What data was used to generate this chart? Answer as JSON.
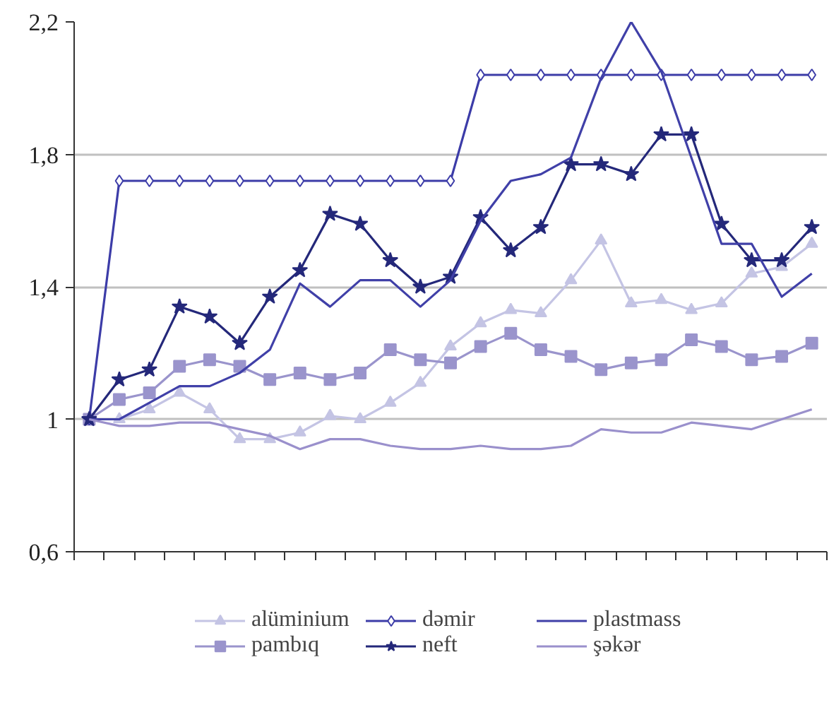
{
  "chart_data": {
    "type": "line",
    "categories": [
      null,
      null,
      null,
      null,
      null,
      null,
      null,
      null,
      null,
      null,
      null,
      null,
      null,
      null,
      null,
      null,
      null,
      null,
      null,
      null,
      null,
      null,
      null,
      null,
      null
    ],
    "ylim": [
      0.6,
      2.2
    ],
    "yticks": [
      {
        "value": 0.6,
        "label": "0,6"
      },
      1,
      {
        "value": 1.4,
        "label": "1,4"
      },
      {
        "value": 1.8,
        "label": "1,8"
      },
      {
        "value": 2.2,
        "label": "2,2"
      }
    ],
    "grid": "y",
    "legend": "bottom",
    "tick_labels": "y",
    "series": [
      {
        "name": "alüminium",
        "color": "#c4c4e4",
        "marker": "triangle",
        "values": [
          1.0,
          1.0,
          1.03,
          1.08,
          1.03,
          0.94,
          0.94,
          0.96,
          1.01,
          1.0,
          1.05,
          1.11,
          1.22,
          1.29,
          1.33,
          1.32,
          1.42,
          1.54,
          1.35,
          1.36,
          1.33,
          1.35,
          1.44,
          1.46,
          1.53
        ]
      },
      {
        "name": "pambıq",
        "color": "#9a94cc",
        "marker": "square",
        "values": [
          1.0,
          1.06,
          1.08,
          1.16,
          1.18,
          1.16,
          1.12,
          1.14,
          1.12,
          1.14,
          1.21,
          1.18,
          1.17,
          1.22,
          1.26,
          1.21,
          1.19,
          1.15,
          1.17,
          1.18,
          1.24,
          1.22,
          1.18,
          1.19,
          1.23
        ]
      },
      {
        "name": "dəmir",
        "color": "#3c3ca8",
        "marker": "diamond",
        "values": [
          1.0,
          1.72,
          1.72,
          1.72,
          1.72,
          1.72,
          1.72,
          1.72,
          1.72,
          1.72,
          1.72,
          1.72,
          1.72,
          2.04,
          2.04,
          2.04,
          2.04,
          2.04,
          2.04,
          2.04,
          2.04,
          2.04,
          2.04,
          2.04,
          2.04
        ]
      },
      {
        "name": "neft",
        "color": "#24287a",
        "marker": "star",
        "values": [
          1.0,
          1.12,
          1.15,
          1.34,
          1.31,
          1.23,
          1.37,
          1.45,
          1.62,
          1.59,
          1.48,
          1.4,
          1.43,
          1.61,
          1.51,
          1.58,
          1.77,
          1.77,
          1.74,
          1.86,
          1.86,
          1.59,
          1.48,
          1.48,
          1.58
        ]
      },
      {
        "name": "plastmass",
        "color": "#4040a8",
        "marker": "none",
        "values": [
          1.0,
          1.0,
          1.05,
          1.1,
          1.1,
          1.14,
          1.21,
          1.41,
          1.34,
          1.42,
          1.42,
          1.34,
          1.42,
          1.6,
          1.72,
          1.74,
          1.79,
          2.03,
          2.2,
          2.05,
          1.79,
          1.53,
          1.53,
          1.37,
          1.44
        ]
      },
      {
        "name": "şəkər",
        "color": "#9a90cc",
        "marker": "none",
        "values": [
          1.0,
          0.98,
          0.98,
          0.99,
          0.99,
          0.97,
          0.95,
          0.91,
          0.94,
          0.94,
          0.92,
          0.91,
          0.91,
          0.92,
          0.91,
          0.91,
          0.92,
          0.97,
          0.96,
          0.96,
          0.99,
          0.98,
          0.97,
          1.0,
          1.03
        ]
      }
    ]
  }
}
